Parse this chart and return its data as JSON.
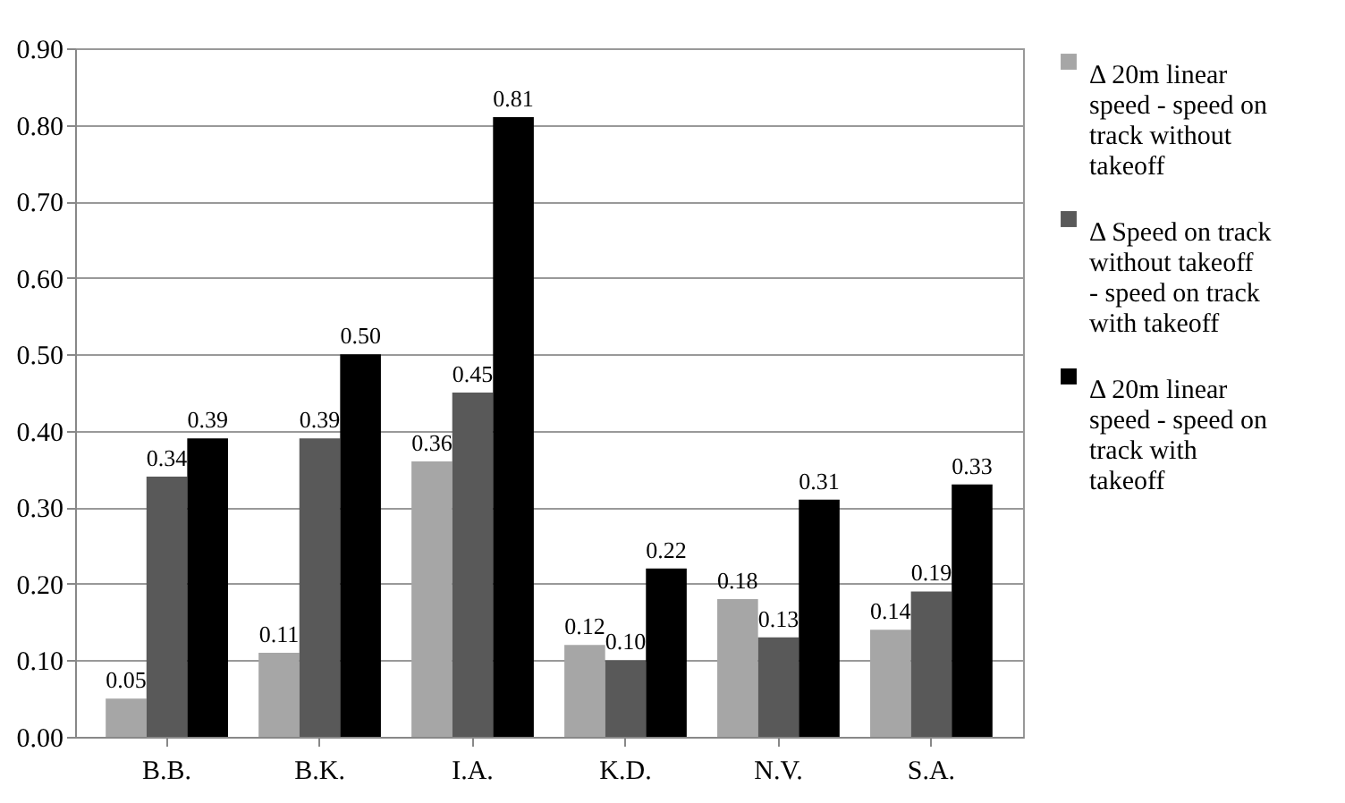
{
  "chart_data": {
    "type": "bar",
    "categories": [
      "B.B.",
      "B.K.",
      "I.A.",
      "K.D.",
      "N.V.",
      "S.A."
    ],
    "series": [
      {
        "name": "Δ 20m linear speed - speed on track without takeoff",
        "color": "#a6a6a6",
        "values": [
          0.05,
          0.11,
          0.36,
          0.12,
          0.18,
          0.14
        ],
        "value_labels": [
          "0.05",
          "0.11",
          "0.36",
          "0.12",
          "0.18",
          "0.14"
        ]
      },
      {
        "name": "Δ Speed on track without takeoff - speed on track with takeoff",
        "color": "#595959",
        "values": [
          0.34,
          0.39,
          0.45,
          0.1,
          0.13,
          0.19
        ],
        "value_labels": [
          "0.34",
          "0.39",
          "0.45",
          "0.10",
          "0.13",
          "0.19"
        ]
      },
      {
        "name": "Δ 20m linear speed - speed on track with takeoff",
        "color": "#000000",
        "values": [
          0.39,
          0.5,
          0.81,
          0.22,
          0.31,
          0.33
        ],
        "value_labels": [
          "0.39",
          "0.50",
          "0.81",
          "0.22",
          "0.31",
          "0.33"
        ]
      }
    ],
    "ylim": [
      0,
      0.9
    ],
    "yticks": [
      {
        "value": 0,
        "label": "0.00"
      },
      {
        "value": 0.1,
        "label": "0.10"
      },
      {
        "value": 0.2,
        "label": "0.20"
      },
      {
        "value": 0.3,
        "label": "0.30"
      },
      {
        "value": 0.4,
        "label": "0.40"
      },
      {
        "value": 0.5,
        "label": "0.50"
      },
      {
        "value": 0.6,
        "label": "0.60"
      },
      {
        "value": 0.7,
        "label": "0.70"
      },
      {
        "value": 0.8,
        "label": "0.80"
      },
      {
        "value": 0.9,
        "label": "0.90"
      }
    ],
    "grid": "y",
    "legend": "right"
  }
}
